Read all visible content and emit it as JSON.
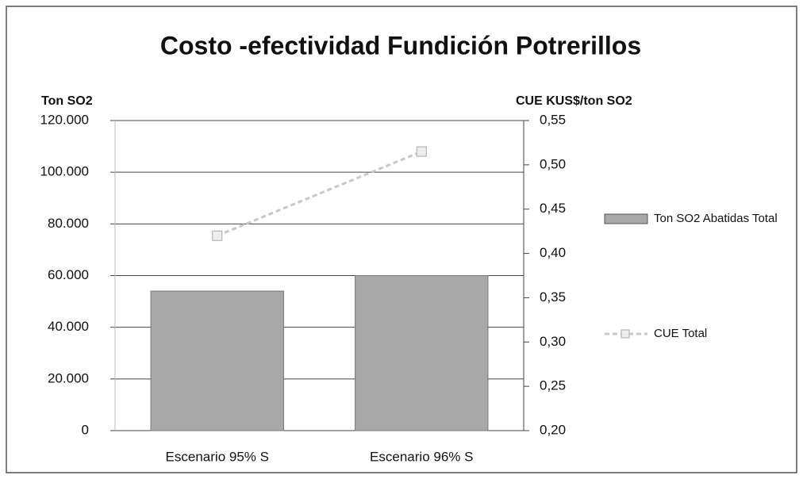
{
  "chart_data": {
    "type": "combo",
    "title": "Costo -efectividad Fundición Potrerillos",
    "y_label": "Ton SO2",
    "y2_label": "CUE KUS$/ton SO2",
    "categories": [
      "Escenario 95% S",
      "Escenario 96% S"
    ],
    "series": [
      {
        "name": "Ton SO2 Abatidas Total",
        "type": "bar",
        "color": "#a8a8a8",
        "values": [
          54000,
          60000
        ]
      },
      {
        "name": "CUE Total",
        "type": "line",
        "axis": "y2",
        "color": "#c8c8c8",
        "values": [
          0.42,
          0.515
        ]
      }
    ],
    "ylim": [
      0,
      120000
    ],
    "yticks": [
      0,
      {
        "value": 20000,
        "label": "20.000"
      },
      {
        "value": 40000,
        "label": "40.000"
      },
      {
        "value": 60000,
        "label": "60.000"
      },
      {
        "value": 80000,
        "label": "80.000"
      },
      {
        "value": 100000,
        "label": "100.000"
      },
      {
        "value": 120000,
        "label": "120.000"
      }
    ],
    "y2lim": [
      0.2,
      0.55
    ],
    "y2ticks": [
      {
        "value": 0.2,
        "label": "0,20"
      },
      {
        "value": 0.25,
        "label": "0,25"
      },
      {
        "value": 0.3,
        "label": "0,30"
      },
      {
        "value": 0.35,
        "label": "0,35"
      },
      {
        "value": 0.4,
        "label": "0,40"
      },
      {
        "value": 0.45,
        "label": "0,45"
      },
      {
        "value": 0.5,
        "label": "0,50"
      },
      {
        "value": 0.55,
        "label": "0,55"
      }
    ],
    "grid": true,
    "legend": "right"
  }
}
